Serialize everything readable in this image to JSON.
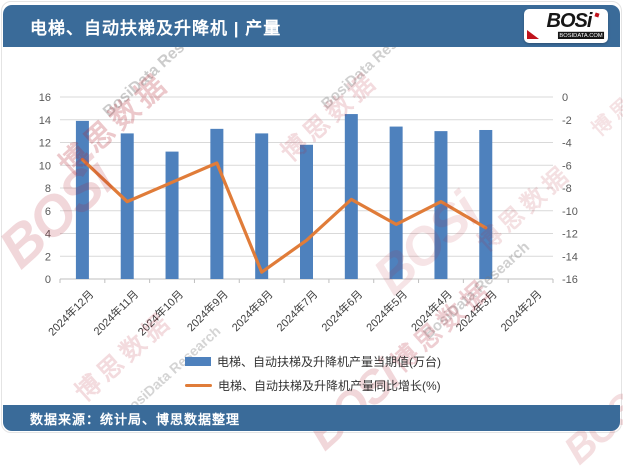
{
  "header": {
    "title": "电梯、自动扶梯及升降机 | 产量",
    "logo": {
      "brand": "BOSi",
      "domain": "BOSIDATA.COM"
    }
  },
  "footer": {
    "source": "数据来源：统计局、博思数据整理"
  },
  "watermark": {
    "brand": "BOSi",
    "cn": "博思数据",
    "en": "BosiData Research"
  },
  "colors": {
    "theme_blue": "#3A6B99",
    "bar_blue": "#4E81BD",
    "line_orange": "#E07C39",
    "grid_gray": "#D9D9D9",
    "axis_gray": "#BFBFBF",
    "logo_red": "#C0131C"
  },
  "chart_data": {
    "type": "bar",
    "title": "电梯、自动扶梯及升降机 | 产量",
    "categories": [
      "2024年12月",
      "2024年11月",
      "2024年10月",
      "2024年9月",
      "2024年8月",
      "2024年7月",
      "2024年6月",
      "2024年5月",
      "2024年4月",
      "2024年3月",
      "2024年2月"
    ],
    "series": [
      {
        "name": "电梯、自动扶梯及升降机产量当期值(万台)",
        "type": "bar",
        "axis": "left",
        "color": "#4E81BD",
        "values": [
          13.9,
          12.8,
          11.2,
          13.2,
          12.8,
          11.8,
          14.5,
          13.4,
          13.0,
          13.1,
          null
        ]
      },
      {
        "name": "电梯、自动扶梯及升降机产量同比增长(%)",
        "type": "line",
        "axis": "right",
        "color": "#E07C39",
        "values": [
          -5.5,
          -9.2,
          -7.5,
          -5.8,
          -15.4,
          -12.6,
          -9.0,
          -11.2,
          -9.2,
          -11.5,
          null
        ]
      }
    ],
    "left_axis": {
      "min": 0,
      "max": 16,
      "step": 2
    },
    "right_axis": {
      "min": -16,
      "max": 0,
      "step": 2
    },
    "grid": true,
    "legend_position": "bottom"
  }
}
